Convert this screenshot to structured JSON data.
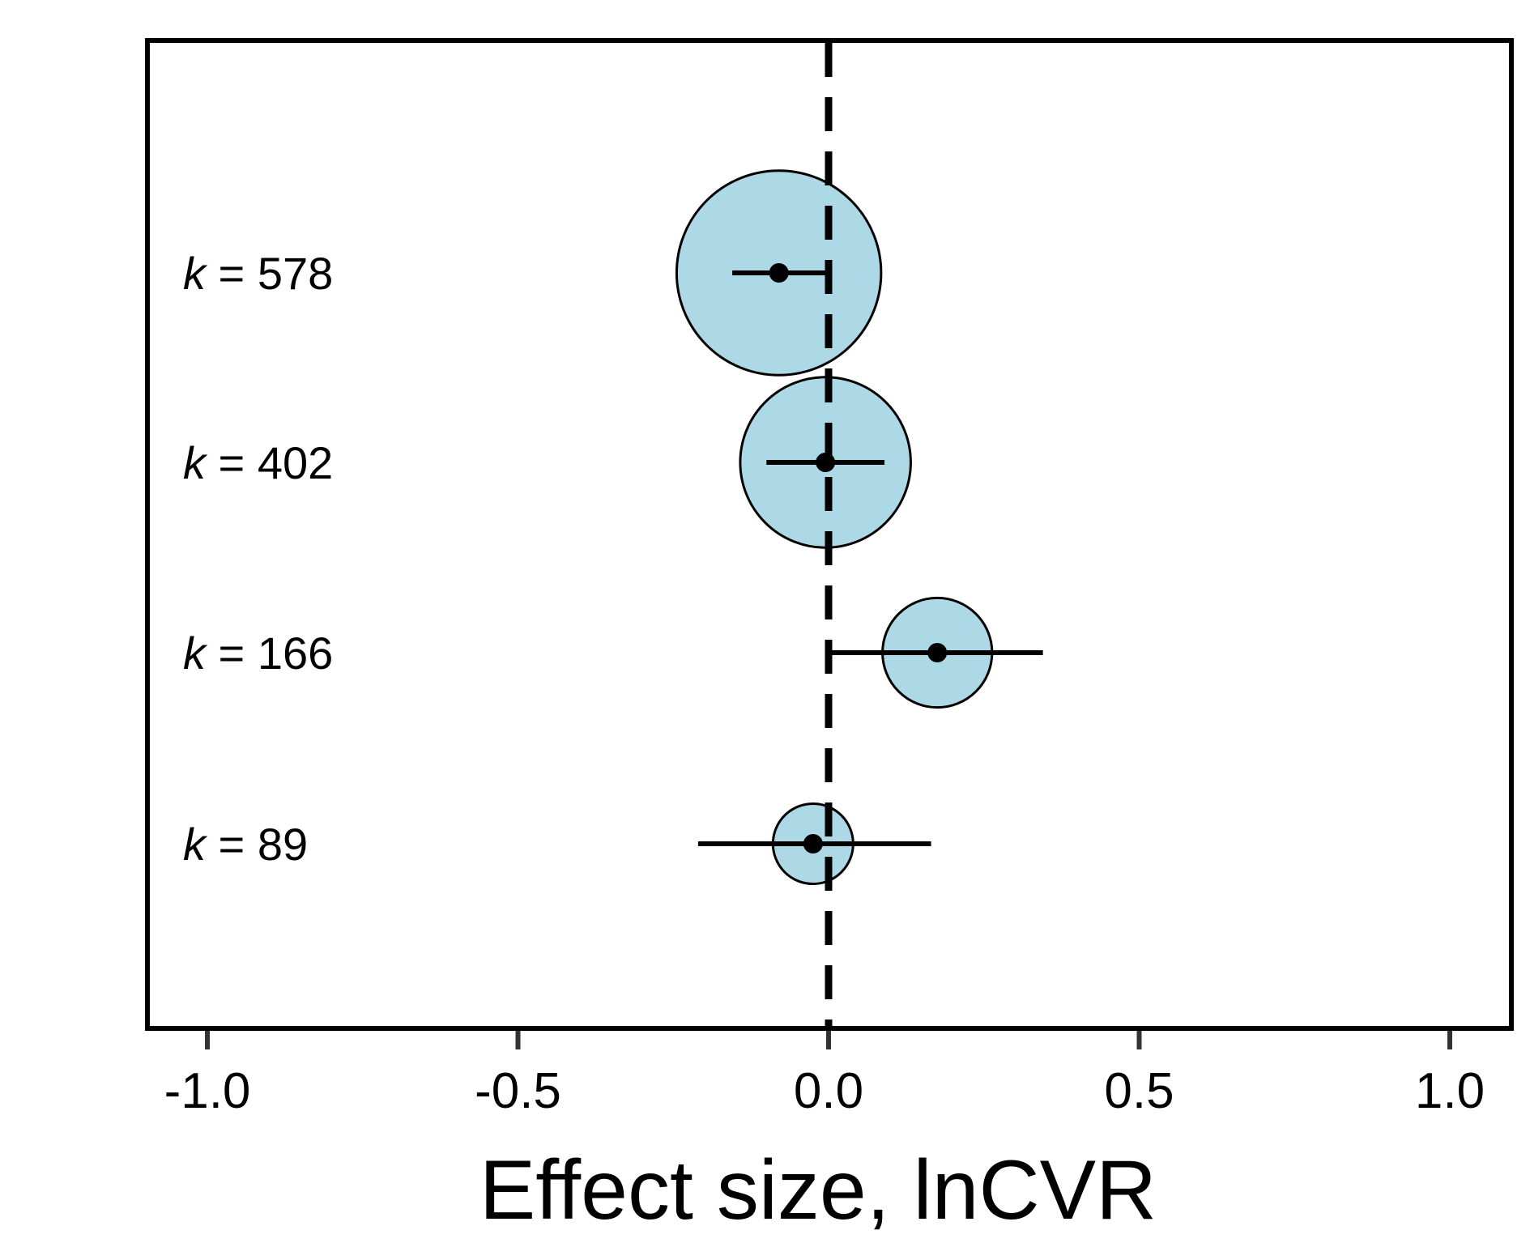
{
  "chart_data": {
    "type": "scatter",
    "title": "",
    "xlabel": "Effect size, lnCVR",
    "ylabel": "",
    "xlim": [
      -1.1,
      1.1
    ],
    "x_ticks": [
      -1.0,
      -0.5,
      0.0,
      0.5,
      1.0
    ],
    "x_tick_labels": [
      "-1.0",
      "-0.5",
      "0.0",
      "0.5",
      "1.0"
    ],
    "reference_line": {
      "x": 0.0,
      "style": "dashed"
    },
    "grid": false,
    "legend": "none",
    "colors": {
      "bubble_fill": "#add8e6",
      "stroke": "#000000"
    },
    "points": [
      {
        "label_var": "k",
        "label_rest": " = 578",
        "k": 578,
        "estimate": -0.08,
        "ci_low": -0.155,
        "ci_high": -0.005
      },
      {
        "label_var": "k",
        "label_rest": " = 402",
        "k": 402,
        "estimate": -0.005,
        "ci_low": -0.1,
        "ci_high": 0.09
      },
      {
        "label_var": "k",
        "label_rest": " = 166",
        "k": 166,
        "estimate": 0.175,
        "ci_low": 0.0,
        "ci_high": 0.345
      },
      {
        "label_var": "k",
        "label_rest": " = 89",
        "k": 89,
        "estimate": -0.025,
        "ci_low": -0.21,
        "ci_high": 0.165
      }
    ]
  }
}
